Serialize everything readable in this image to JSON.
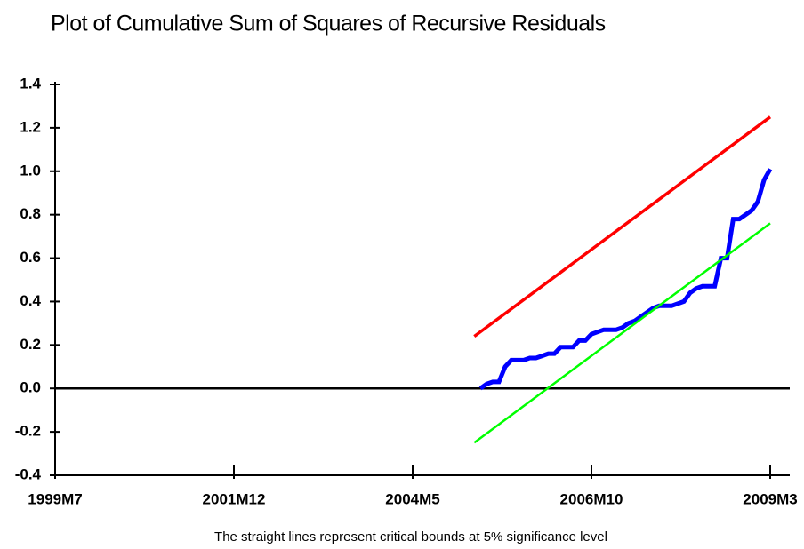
{
  "chart_data": {
    "type": "line",
    "title": "Plot of Cumulative Sum of Squares of Recursive Residuals",
    "note": "The straight lines represent critical bounds at 5% significance level",
    "xlim": [
      "1999M7",
      "2009M3"
    ],
    "xticks": [
      "1999M7",
      "2001M12",
      "2004M5",
      "2006M10",
      "2009M3"
    ],
    "ylim": [
      -0.4,
      1.4
    ],
    "yticks": [
      {
        "value": -0.4,
        "label": "-0.4"
      },
      {
        "value": -0.2,
        "label": "-0.2"
      },
      {
        "value": 0,
        "label": "0.0"
      },
      0.2,
      0.4,
      0.6,
      0.8,
      {
        "value": 1,
        "label": "1.0"
      },
      1.2,
      1.4
    ],
    "series": [
      {
        "color": "#0000ff",
        "x": [
          "2005M4",
          "2005M5",
          "2005M6",
          "2005M7",
          "2005M8",
          "2005M9",
          "2005M10",
          "2005M11",
          "2005M12",
          "2006M1",
          "2006M2",
          "2006M3",
          "2006M4",
          "2006M5",
          "2006M6",
          "2006M7",
          "2006M8",
          "2006M9",
          "2006M10",
          "2006M11",
          "2006M12",
          "2007M1",
          "2007M2",
          "2007M3",
          "2007M4",
          "2007M5",
          "2007M6",
          "2007M7",
          "2007M8",
          "2007M9",
          "2007M10",
          "2007M11",
          "2007M12",
          "2008M1",
          "2008M2",
          "2008M3",
          "2008M4",
          "2008M5",
          "2008M6",
          "2008M7",
          "2008M8",
          "2008M9",
          "2008M10",
          "2008M11",
          "2008M12",
          "2009M1",
          "2009M2",
          "2009M3"
        ],
        "values": [
          0.0,
          0.02,
          0.03,
          0.03,
          0.1,
          0.13,
          0.13,
          0.13,
          0.14,
          0.14,
          0.15,
          0.16,
          0.16,
          0.19,
          0.19,
          0.19,
          0.22,
          0.22,
          0.25,
          0.26,
          0.27,
          0.27,
          0.27,
          0.28,
          0.3,
          0.31,
          0.33,
          0.35,
          0.37,
          0.38,
          0.38,
          0.38,
          0.39,
          0.4,
          0.44,
          0.46,
          0.47,
          0.47,
          0.47,
          0.6,
          0.6,
          0.78,
          0.78,
          0.8,
          0.82,
          0.86,
          0.96,
          1.01
        ]
      },
      {
        "color": "#ff0000",
        "x": [
          "2005M3",
          "2009M3"
        ],
        "values": [
          0.24,
          1.25
        ]
      },
      {
        "color": "#00ff00",
        "x": [
          "2005M3",
          "2009M3"
        ],
        "values": [
          -0.25,
          0.76
        ]
      }
    ]
  }
}
